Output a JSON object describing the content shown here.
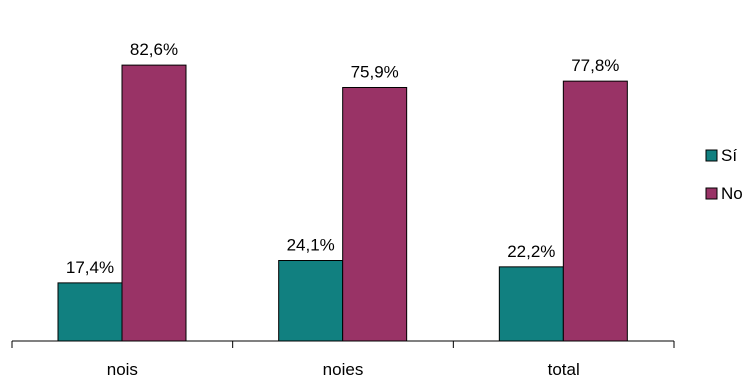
{
  "chart_data": {
    "type": "bar",
    "categories": [
      "nois",
      "noies",
      "total"
    ],
    "series": [
      {
        "name": "Sí",
        "values": [
          17.4,
          24.1,
          22.2
        ],
        "labels": [
          "17,4%",
          "24,1%",
          "22,2%"
        ],
        "color": "#118080"
      },
      {
        "name": "No",
        "values": [
          82.6,
          75.9,
          77.8
        ],
        "labels": [
          "82,6%",
          "75,9%",
          "77,8%"
        ],
        "color": "#993366"
      }
    ],
    "title": "",
    "xlabel": "",
    "ylabel": "",
    "ylim": [
      0,
      100
    ],
    "grid": false,
    "legend": "right"
  }
}
